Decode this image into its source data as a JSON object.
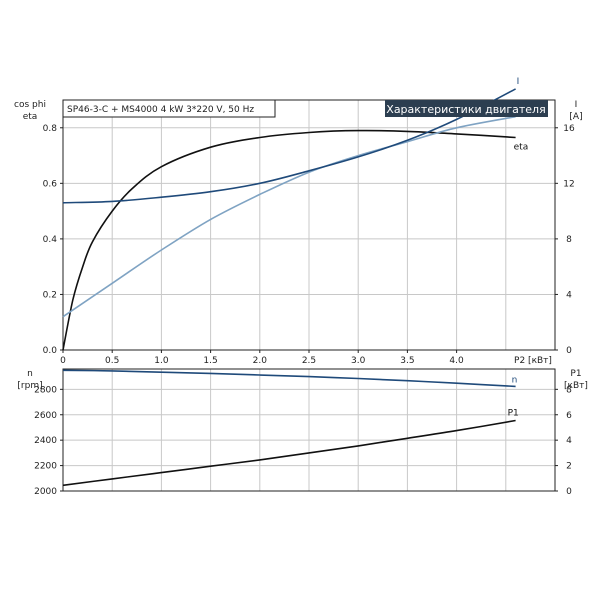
{
  "header": {
    "info": "SP46-3-C + MS4000  4 kW  3*220 V, 50 Hz",
    "badge": "Характеристики двигателя",
    "badge_bg": "#2c3e50"
  },
  "chart_data": [
    {
      "type": "line",
      "title": "",
      "xlabel": "P2 [кВт]",
      "xlim": [
        0,
        5.0
      ],
      "xticks": [
        0,
        0.5,
        1.0,
        1.5,
        2.0,
        2.5,
        3.0,
        3.5,
        4.0
      ],
      "xtick_labels": [
        "0",
        "0.5",
        "1.0",
        "1.5",
        "2.0",
        "2.5",
        "3.0",
        "3.5",
        "4.0"
      ],
      "left_axis": {
        "label_lines": [
          "cos phi",
          "eta"
        ],
        "ylim": [
          0,
          0.9
        ],
        "ticks": [
          0.0,
          0.2,
          0.4,
          0.6,
          0.8
        ],
        "tick_labels": [
          "0.0",
          "0.2",
          "0.4",
          "0.6",
          "0.8"
        ]
      },
      "right_axis": {
        "label_lines": [
          "I",
          "[A]"
        ],
        "ylim": [
          0,
          18
        ],
        "ticks": [
          0,
          4,
          8,
          12,
          16
        ],
        "tick_labels": [
          "0",
          "4",
          "8",
          "12",
          "16"
        ]
      },
      "grid": true,
      "series": [
        {
          "name": "eta",
          "axis": "left",
          "color": "#111111",
          "x": [
            0.0,
            0.1,
            0.2,
            0.3,
            0.5,
            0.7,
            1.0,
            1.5,
            2.0,
            2.5,
            3.0,
            3.5,
            4.0,
            4.6
          ],
          "y": [
            0.0,
            0.18,
            0.3,
            0.39,
            0.5,
            0.58,
            0.66,
            0.73,
            0.765,
            0.783,
            0.79,
            0.787,
            0.778,
            0.765
          ]
        },
        {
          "name": "cos phi",
          "axis": "left",
          "color": "#7fa3c3",
          "x": [
            0.0,
            0.5,
            1.0,
            1.5,
            2.0,
            2.5,
            3.0,
            3.5,
            4.0,
            4.6
          ],
          "y": [
            0.12,
            0.24,
            0.36,
            0.47,
            0.56,
            0.64,
            0.7,
            0.75,
            0.8,
            0.84
          ]
        },
        {
          "name": "I",
          "axis": "right",
          "color": "#1f4a7a",
          "x": [
            0.0,
            0.5,
            1.0,
            1.5,
            2.0,
            2.5,
            3.0,
            3.5,
            4.0,
            4.6
          ],
          "y": [
            10.6,
            10.7,
            11.0,
            11.4,
            12.0,
            12.9,
            13.9,
            15.1,
            16.6,
            18.8
          ]
        }
      ]
    },
    {
      "type": "line",
      "title": "",
      "xlabel": "",
      "xlim": [
        0,
        5.0
      ],
      "left_axis": {
        "label_lines": [
          "n",
          "[rpm]"
        ],
        "ylim": [
          2000,
          2960
        ],
        "ticks": [
          2000,
          2200,
          2400,
          2600,
          2800
        ],
        "tick_labels": [
          "2000",
          "2200",
          "2400",
          "2600",
          "2800"
        ]
      },
      "right_axis": {
        "label_lines": [
          "P1",
          "[кВт]"
        ],
        "ylim": [
          0,
          9.6
        ],
        "ticks": [
          0,
          2,
          4,
          6,
          8
        ],
        "tick_labels": [
          "0",
          "2",
          "4",
          "6",
          "8"
        ]
      },
      "grid": true,
      "series": [
        {
          "name": "n",
          "axis": "left",
          "color": "#1f4a7a",
          "x": [
            0.0,
            0.5,
            1.0,
            1.5,
            2.0,
            2.5,
            3.0,
            3.5,
            4.0,
            4.6
          ],
          "y": [
            2950,
            2945,
            2935,
            2925,
            2913,
            2900,
            2885,
            2868,
            2848,
            2823
          ]
        },
        {
          "name": "P1",
          "axis": "right",
          "color": "#111111",
          "x": [
            0.0,
            0.5,
            1.0,
            1.5,
            2.0,
            2.5,
            3.0,
            3.5,
            4.0,
            4.6
          ],
          "y": [
            0.45,
            0.95,
            1.45,
            1.95,
            2.45,
            3.0,
            3.55,
            4.15,
            4.75,
            5.55
          ]
        }
      ]
    }
  ]
}
